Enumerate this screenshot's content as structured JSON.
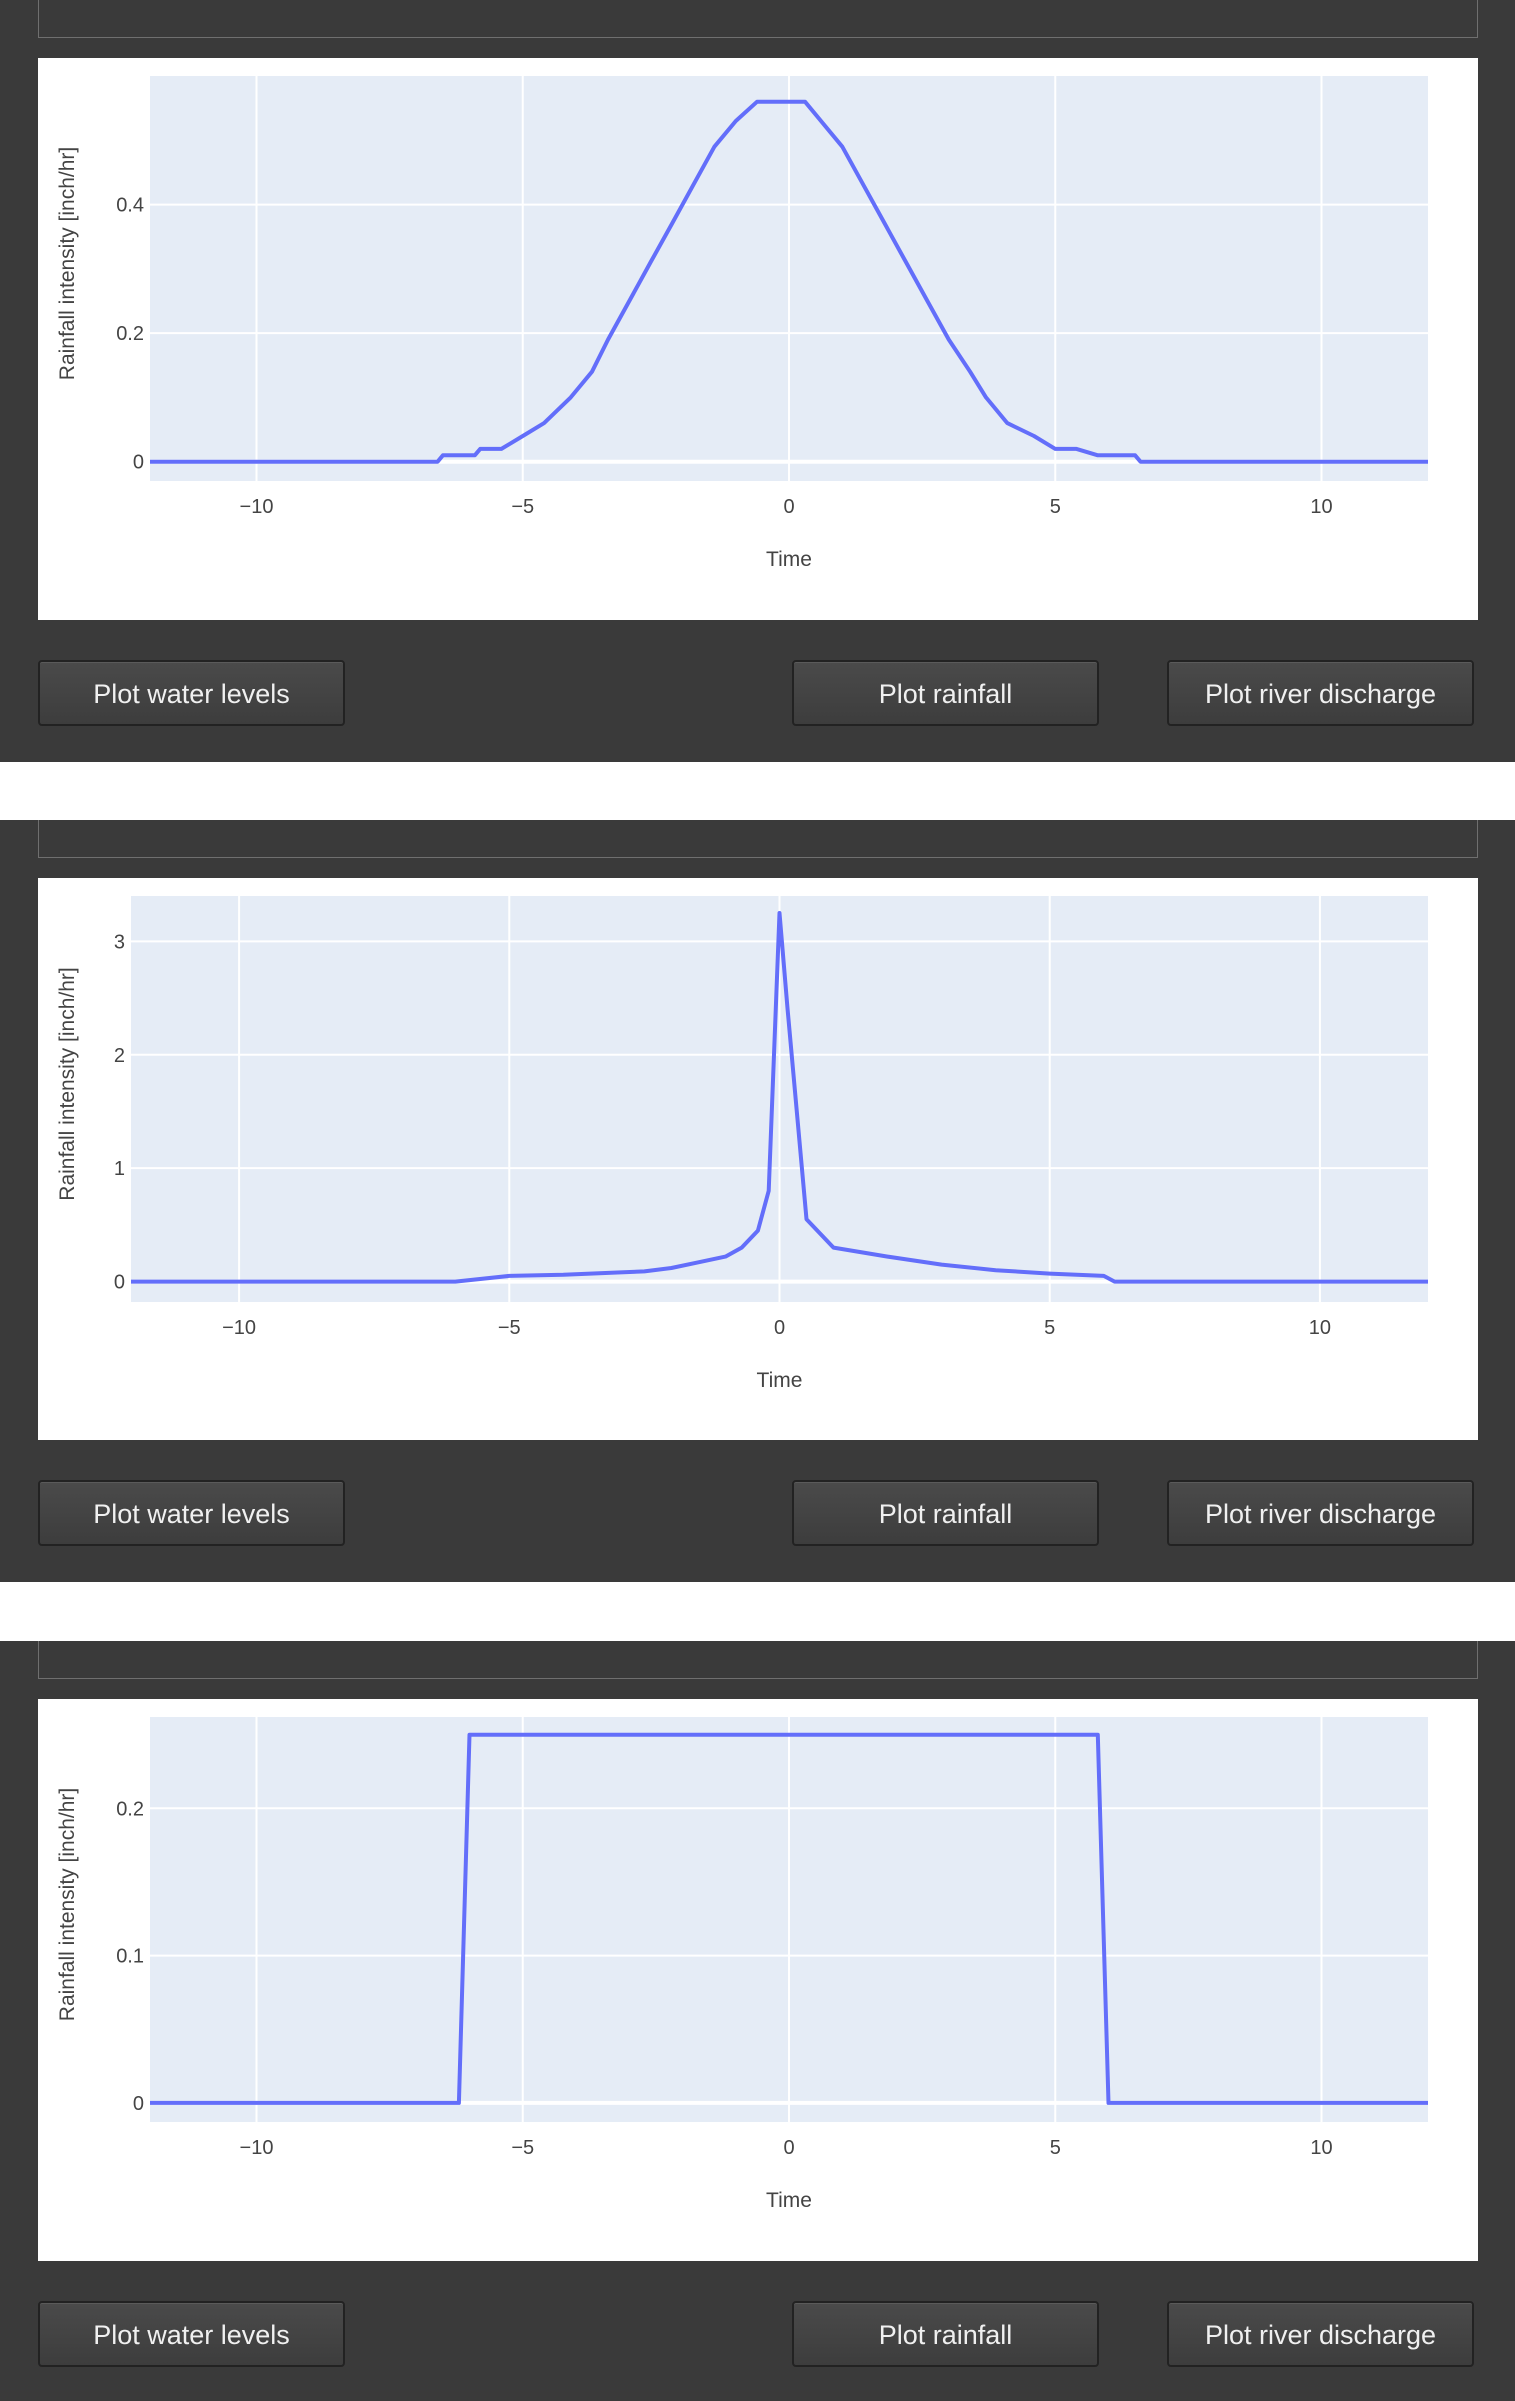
{
  "buttons": {
    "water_levels": "Plot water levels",
    "rainfall": "Plot rainfall",
    "river_discharge": "Plot river discharge"
  },
  "colors": {
    "line": "#636efa",
    "plot_bg": "#e5ecf6",
    "panel": "#3a3a3a"
  },
  "chart_data": [
    {
      "type": "line",
      "xlabel": "Time",
      "ylabel": "Rainfall intensity [inch/hr]",
      "xlim": [
        -12,
        12
      ],
      "ylim": [
        -0.03,
        0.6
      ],
      "xticks": [
        -10,
        -5,
        0,
        5,
        10
      ],
      "yticks": [
        0,
        0.2,
        0.4
      ],
      "ytick_labels": [
        "0",
        "0.2",
        "0.4"
      ],
      "grid": true,
      "x": [
        -12,
        -6.6,
        -6.5,
        -5.9,
        -5.8,
        -5.4,
        -5.0,
        -4.6,
        -4.1,
        -3.7,
        -3.4,
        -3.0,
        -2.6,
        -2.2,
        -1.8,
        -1.4,
        -1.0,
        -0.6,
        -0.3,
        0,
        0.3,
        0.6,
        1.0,
        1.4,
        1.8,
        2.2,
        2.6,
        3.0,
        3.4,
        3.7,
        4.1,
        4.6,
        5.0,
        5.4,
        5.8,
        5.9,
        6.5,
        6.6,
        12
      ],
      "y": [
        0,
        0,
        0.01,
        0.01,
        0.02,
        0.02,
        0.04,
        0.06,
        0.1,
        0.14,
        0.19,
        0.25,
        0.31,
        0.37,
        0.43,
        0.49,
        0.53,
        0.56,
        0.56,
        0.56,
        0.56,
        0.53,
        0.49,
        0.43,
        0.37,
        0.31,
        0.25,
        0.19,
        0.14,
        0.1,
        0.06,
        0.04,
        0.02,
        0.02,
        0.01,
        0.01,
        0.01,
        0,
        0
      ]
    },
    {
      "type": "line",
      "xlabel": "Time",
      "ylabel": "Rainfall intensity [inch/hr]",
      "xlim": [
        -12,
        12
      ],
      "ylim": [
        -0.18,
        3.4
      ],
      "xticks": [
        -10,
        -5,
        0,
        5,
        10
      ],
      "yticks": [
        0,
        1,
        2,
        3
      ],
      "ytick_labels": [
        "0",
        "1",
        "2",
        "3"
      ],
      "grid": true,
      "x": [
        -12,
        -6,
        -5,
        -4,
        -3,
        -2.5,
        -2,
        -1.5,
        -1,
        -0.7,
        -0.4,
        -0.2,
        0,
        0.15,
        0.5,
        1.0,
        2.0,
        3.0,
        4.0,
        5.0,
        6.0,
        6.2,
        12
      ],
      "y": [
        0,
        0,
        0.05,
        0.06,
        0.08,
        0.09,
        0.12,
        0.17,
        0.22,
        0.3,
        0.45,
        0.8,
        3.25,
        2.4,
        0.55,
        0.3,
        0.22,
        0.15,
        0.1,
        0.07,
        0.05,
        0,
        0
      ]
    },
    {
      "type": "line",
      "xlabel": "Time",
      "ylabel": "Rainfall intensity [inch/hr]",
      "xlim": [
        -12,
        12
      ],
      "ylim": [
        -0.013,
        0.262
      ],
      "xticks": [
        -10,
        -5,
        0,
        5,
        10
      ],
      "yticks": [
        0,
        0.1,
        0.2
      ],
      "ytick_labels": [
        "0",
        "0.1",
        "0.2"
      ],
      "grid": true,
      "x": [
        -12,
        -6.2,
        -6.0,
        5.8,
        6.0,
        12
      ],
      "y": [
        0,
        0,
        0.25,
        0.25,
        0,
        0
      ]
    }
  ]
}
